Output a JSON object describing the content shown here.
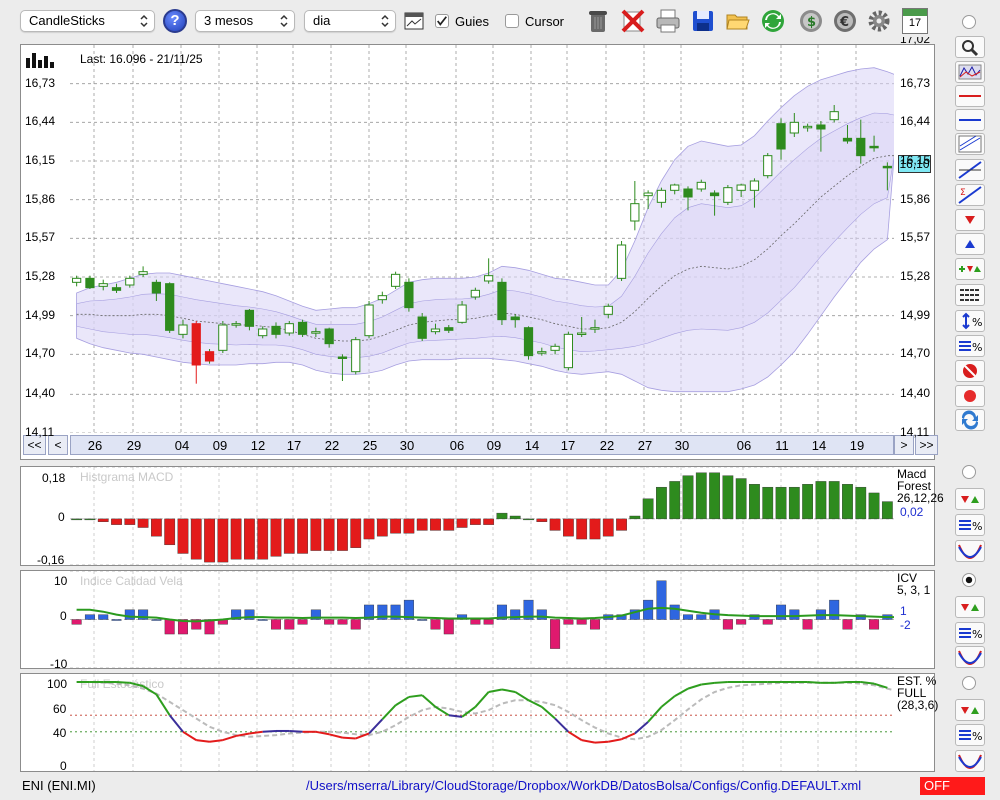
{
  "toolbar": {
    "chart_type": "CandleSticks",
    "help": "?",
    "period": "3 mesos",
    "interval": "dia",
    "guides_label": "Guies",
    "guides_checked": true,
    "cursor_label": "Cursor",
    "cursor_checked": false,
    "calendar_day": "17"
  },
  "main_chart": {
    "last_label": "Last: 16.096 - 21/11/25",
    "current_price_tag": "16,10",
    "y_ticks": [
      "16,73",
      "16,44",
      "16,15",
      "15,86",
      "15,57",
      "15,28",
      "14,99",
      "14,70",
      "14,40",
      "14,11"
    ],
    "y_top_clipped": "17,02",
    "date_labels": [
      "26",
      "29",
      "04",
      "09",
      "12",
      "17",
      "22",
      "25",
      "30",
      "06",
      "09",
      "14",
      "17",
      "22",
      "27",
      "30",
      "06",
      "11",
      "14",
      "19"
    ],
    "nav": {
      "first": "<<",
      "prev": "<",
      "next": ">",
      "last": ">>"
    }
  },
  "macd_panel": {
    "title": "Histgrama MACD",
    "y_ticks": [
      "0,18",
      "0",
      "-0,16"
    ],
    "name": "Macd",
    "name2": "Forest",
    "params": "26,12,26",
    "value": "0,02"
  },
  "icv_panel": {
    "title": "Indice Calidad Vela",
    "y_ticks": [
      "10",
      "0",
      "-10"
    ],
    "name": "ICV",
    "params": "5, 3, 1",
    "value1": "1",
    "value2": "-2"
  },
  "stoch_panel": {
    "title": "Full Estocástico",
    "y_ticks": [
      "100",
      "60",
      "40",
      "0"
    ],
    "name": "EST. %",
    "name2": "FULL",
    "params": "(28,3,6)"
  },
  "status": {
    "symbol": "ENI (ENI.MI)",
    "path": "/Users/mserra/Library/CloudStorage/Dropbox/WorkDB/DatosBolsa/Configs/Config.DEFAULT.xml",
    "badge": "OFF"
  },
  "colors": {
    "up": "#2e8b1e",
    "down": "#e31b1b",
    "band": "#d9d4f5",
    "band_line": "#a79fe0",
    "price_tag": "#7fe8f4",
    "icv_pos": "#2f66e0",
    "icv_neg": "#e0196e"
  },
  "chart_data": {
    "type": "candlestick",
    "ylim": [
      14.11,
      17.02
    ],
    "candles": [
      {
        "o": 15.24,
        "c": 15.27,
        "h": 15.29,
        "l": 15.21
      },
      {
        "o": 15.27,
        "c": 15.2,
        "h": 15.29,
        "l": 15.19
      },
      {
        "o": 15.21,
        "c": 15.23,
        "h": 15.26,
        "l": 15.18
      },
      {
        "o": 15.2,
        "c": 15.18,
        "h": 15.23,
        "l": 15.16
      },
      {
        "o": 15.22,
        "c": 15.27,
        "h": 15.29,
        "l": 15.2
      },
      {
        "o": 15.3,
        "c": 15.32,
        "h": 15.36,
        "l": 15.28
      },
      {
        "o": 15.24,
        "c": 15.16,
        "h": 15.26,
        "l": 15.1
      },
      {
        "o": 15.23,
        "c": 14.88,
        "h": 15.24,
        "l": 14.86
      },
      {
        "o": 14.85,
        "c": 14.92,
        "h": 14.96,
        "l": 14.82
      },
      {
        "o": 14.93,
        "c": 14.62,
        "h": 14.95,
        "l": 14.48
      },
      {
        "o": 14.65,
        "c": 14.72,
        "h": 14.74,
        "l": 14.63
      },
      {
        "o": 14.73,
        "c": 14.92,
        "h": 14.95,
        "l": 14.71
      },
      {
        "o": 14.92,
        "c": 14.93,
        "h": 14.95,
        "l": 14.9
      },
      {
        "o": 15.03,
        "c": 14.91,
        "h": 15.04,
        "l": 14.88
      },
      {
        "o": 14.84,
        "c": 14.89,
        "h": 14.91,
        "l": 14.82
      },
      {
        "o": 14.91,
        "c": 14.85,
        "h": 14.94,
        "l": 14.82
      },
      {
        "o": 14.86,
        "c": 14.93,
        "h": 14.95,
        "l": 14.84
      },
      {
        "o": 14.94,
        "c": 14.85,
        "h": 14.96,
        "l": 14.83
      },
      {
        "o": 14.86,
        "c": 14.87,
        "h": 14.9,
        "l": 14.83
      },
      {
        "o": 14.89,
        "c": 14.78,
        "h": 14.9,
        "l": 14.75
      },
      {
        "o": 14.68,
        "c": 14.67,
        "h": 14.7,
        "l": 14.5
      },
      {
        "o": 14.57,
        "c": 14.81,
        "h": 14.83,
        "l": 14.55
      },
      {
        "o": 14.84,
        "c": 15.07,
        "h": 15.1,
        "l": 14.82
      },
      {
        "o": 15.11,
        "c": 15.14,
        "h": 15.17,
        "l": 15.08
      },
      {
        "o": 15.21,
        "c": 15.3,
        "h": 15.32,
        "l": 15.19
      },
      {
        "o": 15.24,
        "c": 15.05,
        "h": 15.27,
        "l": 15.02
      },
      {
        "o": 14.98,
        "c": 14.82,
        "h": 15.01,
        "l": 14.8
      },
      {
        "o": 14.87,
        "c": 14.89,
        "h": 14.93,
        "l": 14.85
      },
      {
        "o": 14.9,
        "c": 14.88,
        "h": 14.92,
        "l": 14.86
      },
      {
        "o": 14.94,
        "c": 15.07,
        "h": 15.1,
        "l": 14.93
      },
      {
        "o": 15.13,
        "c": 15.18,
        "h": 15.2,
        "l": 15.11
      },
      {
        "o": 15.25,
        "c": 15.29,
        "h": 15.42,
        "l": 15.23
      },
      {
        "o": 15.24,
        "c": 14.96,
        "h": 15.27,
        "l": 14.92
      },
      {
        "o": 14.98,
        "c": 14.96,
        "h": 15.0,
        "l": 14.9
      },
      {
        "o": 14.9,
        "c": 14.69,
        "h": 14.91,
        "l": 14.66
      },
      {
        "o": 14.71,
        "c": 14.72,
        "h": 14.75,
        "l": 14.69
      },
      {
        "o": 14.73,
        "c": 14.76,
        "h": 14.78,
        "l": 14.7
      },
      {
        "o": 14.6,
        "c": 14.85,
        "h": 14.87,
        "l": 14.58
      },
      {
        "o": 14.85,
        "c": 14.86,
        "h": 14.98,
        "l": 14.83
      },
      {
        "o": 14.89,
        "c": 14.9,
        "h": 14.96,
        "l": 14.86
      },
      {
        "o": 15.0,
        "c": 15.06,
        "h": 15.08,
        "l": 14.97
      },
      {
        "o": 15.27,
        "c": 15.52,
        "h": 15.55,
        "l": 15.25
      },
      {
        "o": 15.7,
        "c": 15.83,
        "h": 16.0,
        "l": 15.63
      },
      {
        "o": 15.89,
        "c": 15.91,
        "h": 15.93,
        "l": 15.79
      },
      {
        "o": 15.84,
        "c": 15.93,
        "h": 15.95,
        "l": 15.8
      },
      {
        "o": 15.93,
        "c": 15.97,
        "h": 15.98,
        "l": 15.9
      },
      {
        "o": 15.94,
        "c": 15.88,
        "h": 15.96,
        "l": 15.78
      },
      {
        "o": 15.94,
        "c": 15.99,
        "h": 16.01,
        "l": 15.92
      },
      {
        "o": 15.91,
        "c": 15.89,
        "h": 15.93,
        "l": 15.74
      },
      {
        "o": 15.84,
        "c": 15.95,
        "h": 15.97,
        "l": 15.82
      },
      {
        "o": 15.93,
        "c": 15.97,
        "h": 15.98,
        "l": 15.88
      },
      {
        "o": 15.93,
        "c": 16.0,
        "h": 16.02,
        "l": 15.8
      },
      {
        "o": 16.04,
        "c": 16.19,
        "h": 16.21,
        "l": 16.02
      },
      {
        "o": 16.43,
        "c": 16.24,
        "h": 16.47,
        "l": 16.16
      },
      {
        "o": 16.36,
        "c": 16.44,
        "h": 16.51,
        "l": 16.33
      },
      {
        "o": 16.4,
        "c": 16.41,
        "h": 16.43,
        "l": 16.37
      },
      {
        "o": 16.42,
        "c": 16.39,
        "h": 16.45,
        "l": 16.22
      },
      {
        "o": 16.46,
        "c": 16.52,
        "h": 16.57,
        "l": 16.44
      },
      {
        "o": 16.32,
        "c": 16.3,
        "h": 16.42,
        "l": 16.28
      },
      {
        "o": 16.32,
        "c": 16.19,
        "h": 16.46,
        "l": 16.13
      },
      {
        "o": 16.26,
        "c": 16.25,
        "h": 16.34,
        "l": 16.22
      },
      {
        "o": 16.11,
        "c": 16.1,
        "h": 16.14,
        "l": 15.93
      }
    ],
    "macd_hist": [
      0,
      0,
      -0.01,
      -0.02,
      -0.02,
      -0.03,
      -0.06,
      -0.09,
      -0.12,
      -0.14,
      -0.15,
      -0.15,
      -0.14,
      -0.14,
      -0.14,
      -0.13,
      -0.12,
      -0.12,
      -0.11,
      -0.11,
      -0.11,
      -0.1,
      -0.07,
      -0.06,
      -0.05,
      -0.05,
      -0.04,
      -0.04,
      -0.04,
      -0.03,
      -0.02,
      -0.02,
      0.02,
      0.01,
      0,
      -0.01,
      -0.04,
      -0.06,
      -0.07,
      -0.07,
      -0.06,
      -0.04,
      0.01,
      0.07,
      0.11,
      0.13,
      0.15,
      0.16,
      0.16,
      0.15,
      0.14,
      0.12,
      0.11,
      0.11,
      0.11,
      0.12,
      0.13,
      0.13,
      0.12,
      0.11,
      0.09,
      0.06,
      0.02
    ],
    "icv": [
      -1,
      1,
      1,
      0,
      2,
      2,
      0,
      -3,
      -3,
      -2,
      -3,
      -1,
      2,
      2,
      0,
      -2,
      -2,
      -1,
      2,
      -1,
      -1,
      -2,
      3,
      3,
      3,
      4,
      0,
      -2,
      -3,
      1,
      -1,
      -1,
      3,
      2,
      4,
      2,
      -6,
      -1,
      -1,
      -2,
      1,
      1,
      2,
      4,
      8,
      3,
      1,
      1,
      2,
      -2,
      -1,
      1,
      -1,
      3,
      2,
      -2,
      2,
      4,
      -2,
      1,
      -2,
      1,
      -2
    ],
    "icv_line": [
      2,
      2,
      1.6,
      1,
      0.6,
      0.5,
      0.4,
      0,
      -0.3,
      -0.4,
      -0.2,
      0,
      0.3,
      0.5,
      0.5,
      0.4,
      0.4,
      0.3,
      0.4,
      0.4,
      0.4,
      0.3,
      0.4,
      0.6,
      0.6,
      0.5,
      0.4,
      0.3,
      0.2,
      0.2,
      0.2,
      0.2,
      0.4,
      0.5,
      0.6,
      0.6,
      0.4,
      0.3,
      0.2,
      0.3,
      0.5,
      0.8,
      1.5,
      2.2,
      2.4,
      2.2,
      1.8,
      1.4,
      1.1,
      0.9,
      0.8,
      0.7,
      0.7,
      0.7,
      0.7,
      0.8,
      0.9,
      0.9,
      0.8,
      0.7,
      0.6,
      0.5,
      0.5
    ],
    "stoch_k": [
      100,
      100,
      100,
      100,
      99,
      95,
      85,
      60,
      40,
      30,
      28,
      30,
      35,
      38,
      40,
      41,
      41,
      40,
      40,
      37,
      33,
      32,
      38,
      55,
      72,
      82,
      84,
      70,
      60,
      58,
      70,
      88,
      91,
      88,
      78,
      70,
      56,
      40,
      30,
      27,
      28,
      31,
      38,
      52,
      70,
      83,
      92,
      97,
      99,
      100,
      100,
      100,
      100,
      100,
      100,
      100,
      99,
      99,
      100,
      100,
      98,
      93,
      88
    ],
    "stoch_d": [
      100,
      100,
      99,
      98,
      96,
      92,
      86,
      76,
      66,
      56,
      46,
      40,
      36,
      34,
      35,
      36,
      38,
      39,
      40,
      40,
      39,
      37,
      36,
      40,
      48,
      58,
      66,
      70,
      68,
      64,
      62,
      66,
      74,
      78,
      78,
      76,
      72,
      64,
      54,
      45,
      38,
      33,
      31,
      34,
      42,
      54,
      67,
      79,
      88,
      93,
      96,
      97,
      98,
      99,
      99,
      99,
      99,
      99,
      99,
      98,
      96,
      92,
      88
    ],
    "bollinger_upper": [
      15.16,
      15.2,
      15.22,
      15.24,
      15.27,
      15.3,
      15.31,
      15.31,
      15.29,
      15.27,
      15.25,
      15.23,
      15.21,
      15.19,
      15.17,
      15.14,
      15.1,
      15.06,
      15.03,
      15.04,
      15.05,
      15.05,
      15.08,
      15.12,
      15.18,
      15.24,
      15.26,
      15.27,
      15.27,
      15.27,
      15.28,
      15.31,
      15.36,
      15.35,
      15.33,
      15.3,
      15.27,
      15.26,
      15.24,
      15.22,
      15.22,
      15.33,
      15.55,
      15.8,
      16.0,
      16.16,
      16.26,
      16.3,
      16.28,
      16.26,
      16.27,
      16.34,
      16.45,
      16.55,
      16.64,
      16.71,
      16.76,
      16.79,
      16.82,
      16.84,
      16.85,
      16.82,
      16.78
    ],
    "bollinger_lower": [
      14.82,
      14.78,
      14.75,
      14.73,
      14.71,
      14.7,
      14.68,
      14.66,
      14.64,
      14.63,
      14.62,
      14.62,
      14.62,
      14.63,
      14.63,
      14.64,
      14.64,
      14.62,
      14.58,
      14.56,
      14.55,
      14.55,
      14.56,
      14.58,
      14.62,
      14.65,
      14.66,
      14.66,
      14.66,
      14.67,
      14.67,
      14.67,
      14.66,
      14.65,
      14.63,
      14.61,
      14.58,
      14.56,
      14.55,
      14.56,
      14.57,
      14.55,
      14.5,
      14.45,
      14.43,
      14.42,
      14.42,
      14.42,
      14.42,
      14.42,
      14.44,
      14.47,
      14.53,
      14.62,
      14.72,
      14.85,
      14.99,
      15.13,
      15.26,
      15.39,
      15.49,
      15.56,
      15.6
    ],
    "bollinger_mid": [
      15.0,
      15.0,
      14.99,
      14.99,
      14.99,
      15.0,
      15.0,
      14.99,
      14.97,
      14.95,
      14.94,
      14.93,
      14.92,
      14.92,
      14.91,
      14.9,
      14.88,
      14.85,
      14.82,
      14.81,
      14.8,
      14.8,
      14.81,
      14.84,
      14.88,
      14.92,
      14.94,
      14.95,
      14.96,
      14.96,
      14.97,
      14.99,
      15.01,
      15.0,
      14.98,
      14.96,
      14.93,
      14.91,
      14.89,
      14.89,
      14.9,
      14.94,
      15.02,
      15.12,
      15.21,
      15.29,
      15.34,
      15.36,
      15.35,
      15.34,
      15.36,
      15.41,
      15.49,
      15.59,
      15.68,
      15.78,
      15.88,
      15.96,
      16.04,
      16.11,
      16.17,
      16.19,
      16.19
    ],
    "stoch_levels": [
      60,
      40
    ]
  }
}
